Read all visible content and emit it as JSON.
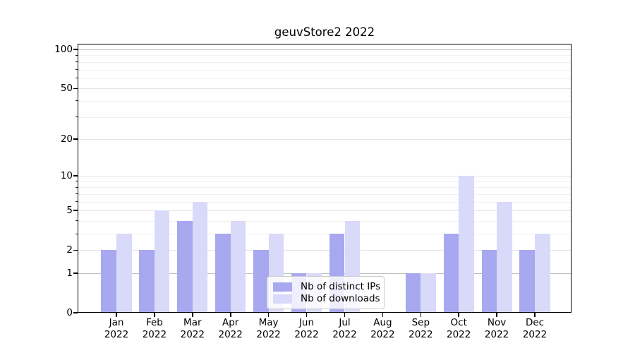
{
  "title": "geuvStore2 2022",
  "chart_data": {
    "type": "bar",
    "title": "geuvStore2 2022",
    "x_categories": [
      "Jan 2022",
      "Feb 2022",
      "Mar 2022",
      "Apr 2022",
      "May 2022",
      "Jun 2022",
      "Jul 2022",
      "Aug 2022",
      "Sep 2022",
      "Oct 2022",
      "Nov 2022",
      "Dec 2022"
    ],
    "xtick_line1": [
      "Jan",
      "Feb",
      "Mar",
      "Apr",
      "May",
      "Jun",
      "Jul",
      "Aug",
      "Sep",
      "Oct",
      "Nov",
      "Dec"
    ],
    "xtick_line2": "2022",
    "series": [
      {
        "name": "Nb of distinct IPs",
        "color": "#a8a8f0",
        "values": [
          2,
          2,
          4,
          3,
          2,
          1,
          3,
          0,
          1,
          3,
          2,
          2
        ]
      },
      {
        "name": "Nb of downloads",
        "color": "#d9d9f9",
        "values": [
          3,
          5,
          6,
          4,
          3,
          1,
          4,
          0,
          1,
          10,
          6,
          3
        ]
      }
    ],
    "yscale": "log1p",
    "ylim": [
      0,
      110
    ],
    "yticks": [
      0,
      1,
      2,
      5,
      10,
      20,
      50,
      100
    ],
    "yticks_minor": [
      3,
      4,
      6,
      7,
      8,
      9,
      30,
      40,
      60,
      70,
      80,
      90
    ],
    "grid": "horizontal, major and minor, on",
    "legend": {
      "position": "lower center",
      "entries": [
        "Nb of distinct IPs",
        "Nb of downloads"
      ]
    }
  }
}
